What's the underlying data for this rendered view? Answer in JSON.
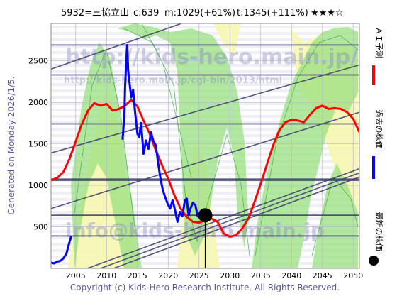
{
  "header": {
    "code_name": "5932=三協立山",
    "current": "c:639",
    "mid": "m:1029(+61%)",
    "target": "t:1345(+111%)",
    "rating": "★★★☆"
  },
  "generated_label": "Generated on Monday 2026/1/5.",
  "copyright": "Copyright (c) Kids-Hero Research Institute. All Rights Reserved.",
  "watermarks": [
    "http://kids-hero.main.jp/",
    "http://kids-hero.main.jp/cgi-bin/2013/html",
    "info@kids-hero.main.jp"
  ],
  "legend": [
    {
      "label": "ＡＩ予測",
      "color": "#ff0000",
      "marker": "line"
    },
    {
      "label": "過去の株価",
      "color": "#0000ff",
      "marker": "line"
    },
    {
      "label": "最新の株価",
      "color": "#000000",
      "marker": "dot"
    }
  ],
  "chart_data": {
    "type": "line",
    "title": "5932=三協立山",
    "xlim": [
      2001,
      2051
    ],
    "ylim": [
      0,
      2950
    ],
    "x_ticks": [
      2005,
      2010,
      2015,
      2020,
      2025,
      2030,
      2035,
      2040,
      2045,
      2050
    ],
    "y_ticks": [
      500,
      1000,
      1500,
      2000,
      2500
    ],
    "grid": true,
    "horizontal_levels": [
      390,
      640,
      1060,
      1075,
      1740,
      2330,
      2690
    ],
    "trend_lines": [
      {
        "x": [
          2001,
          2051
        ],
        "y": [
          2400,
          3700
        ]
      },
      {
        "x": [
          2001,
          2051
        ],
        "y": [
          1390,
          2450
        ]
      },
      {
        "x": [
          2001,
          2051
        ],
        "y": [
          720,
          1880
        ]
      },
      {
        "x": [
          2001,
          2051
        ],
        "y": [
          -160,
          1200
        ]
      },
      {
        "x": [
          2001,
          2051
        ],
        "y": [
          -220,
          1150
        ]
      },
      {
        "x": [
          2001,
          2051
        ],
        "y": [
          -280,
          1100
        ]
      }
    ],
    "latest_price": {
      "x": 2026.0,
      "y": 639
    },
    "series": [
      {
        "name": "ＡＩ予測",
        "color": "#ff0000",
        "x": [
          2001,
          2002,
          2003,
          2004,
          2005,
          2006,
          2007,
          2008,
          2009,
          2010,
          2011,
          2012,
          2013,
          2014,
          2015,
          2016,
          2017,
          2018,
          2019,
          2020,
          2021,
          2022,
          2023,
          2024,
          2025,
          2026,
          2027,
          2028,
          2029,
          2030,
          2031,
          2032,
          2033,
          2034,
          2035,
          2036,
          2037,
          2038,
          2039,
          2040,
          2041,
          2042,
          2043,
          2044,
          2045,
          2046,
          2047,
          2048,
          2049,
          2050,
          2051
        ],
        "y": [
          1060,
          1090,
          1160,
          1320,
          1530,
          1740,
          1900,
          1990,
          1960,
          1980,
          1900,
          1920,
          1960,
          2030,
          1950,
          1780,
          1620,
          1420,
          1240,
          1080,
          880,
          720,
          620,
          560,
          550,
          580,
          600,
          560,
          420,
          380,
          400,
          480,
          600,
          800,
          1020,
          1250,
          1480,
          1660,
          1760,
          1790,
          1780,
          1760,
          1850,
          1930,
          1960,
          1920,
          1930,
          1920,
          1880,
          1800,
          1640
        ]
      },
      {
        "name": "過去の株価",
        "color": "#0000ff",
        "x": [
          2001,
          2001.5,
          2002,
          2002.5,
          2003,
          2003.5,
          2004,
          2004.3,
          2012.6,
          2012.9,
          2013.0,
          2013.2,
          2013.35,
          2013.5,
          2013.7,
          2014.0,
          2014.3,
          2014.6,
          2015.0,
          2015.3,
          2015.6,
          2016.0,
          2016.4,
          2016.8,
          2017.2,
          2017.6,
          2018.0,
          2018.3,
          2018.7,
          2019.1,
          2019.5,
          2019.9,
          2020.3,
          2020.7,
          2021.1,
          2021.5,
          2021.9,
          2022.3,
          2022.7,
          2023.0,
          2023.3,
          2023.6,
          2024.0,
          2024.4,
          2024.8
        ],
        "y": [
          70,
          60,
          80,
          90,
          120,
          180,
          320,
          390,
          1550,
          1850,
          2180,
          2500,
          2690,
          2380,
          2250,
          2060,
          2150,
          1900,
          1620,
          1580,
          1750,
          1380,
          1540,
          1440,
          1640,
          1530,
          1480,
          1300,
          1100,
          950,
          860,
          780,
          720,
          820,
          700,
          560,
          680,
          630,
          820,
          840,
          640,
          720,
          790,
          760,
          620
        ]
      }
    ]
  }
}
